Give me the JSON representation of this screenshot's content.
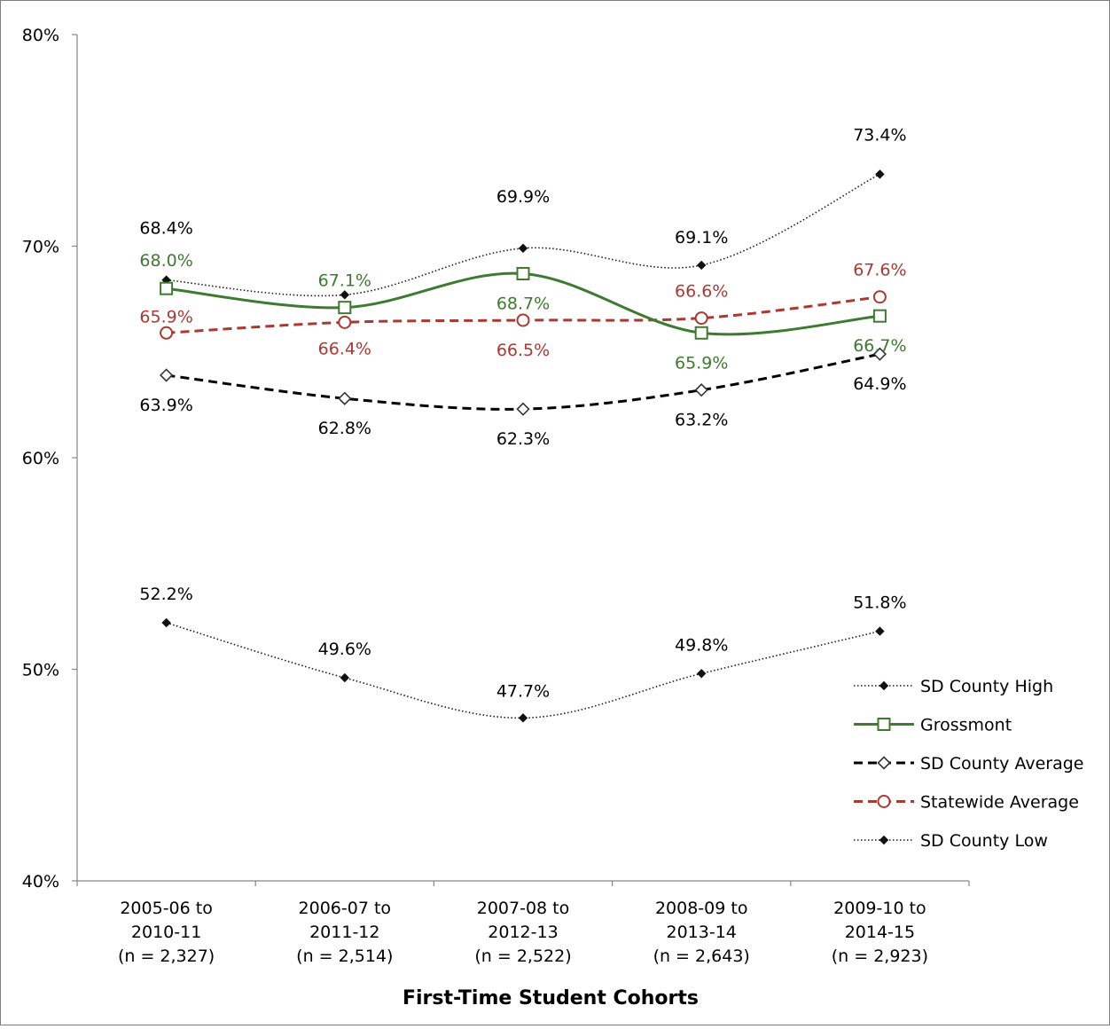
{
  "chart_data": {
    "type": "line",
    "title": "",
    "xlabel": "First-Time Student Cohorts",
    "ylabel": "",
    "ylim": [
      40,
      80
    ],
    "yticks": [
      "40%",
      "50%",
      "60%",
      "70%",
      "80%"
    ],
    "grid": false,
    "legend_position": "right",
    "categories": [
      [
        "2005-06 to",
        "2010-11",
        "(n = 2,327)"
      ],
      [
        "2006-07 to",
        "2011-12",
        "(n = 2,514)"
      ],
      [
        "2007-08 to",
        "2012-13",
        "(n = 2,522)"
      ],
      [
        "2008-09 to",
        "2013-14",
        "(n = 2,643)"
      ],
      [
        "2009-10 to",
        "2014-15",
        "(n = 2,923)"
      ]
    ],
    "series": [
      {
        "name": "SD County High",
        "values": [
          68.4,
          67.7,
          69.9,
          69.1,
          73.4
        ],
        "labels": [
          "68.4%",
          "",
          "69.9%",
          "69.1%",
          "73.4%"
        ],
        "color": "#1a1a1a",
        "dash": "dotted",
        "marker": "small-diamond-filled"
      },
      {
        "name": "Grossmont",
        "values": [
          68.0,
          67.1,
          68.7,
          65.9,
          66.7
        ],
        "labels": [
          "68.0%",
          "67.1%",
          "68.7%",
          "65.9%",
          "66.7%"
        ],
        "color": "#3e7a2f",
        "dash": "solid",
        "marker": "square-open"
      },
      {
        "name": "SD County Average",
        "values": [
          63.9,
          62.8,
          62.3,
          63.2,
          64.9
        ],
        "labels": [
          "63.9%",
          "62.8%",
          "62.3%",
          "63.2%",
          "64.9%"
        ],
        "color": "#000000",
        "dash": "dashed",
        "marker": "diamond-open"
      },
      {
        "name": "Statewide Average",
        "values": [
          65.9,
          66.4,
          66.5,
          66.6,
          67.6
        ],
        "labels": [
          "65.9%",
          "66.4%",
          "66.5%",
          "66.6%",
          "67.6%"
        ],
        "color": "#a83a32",
        "dash": "dashed",
        "marker": "circle-open"
      },
      {
        "name": "SD County Low",
        "values": [
          52.2,
          49.6,
          47.7,
          49.8,
          51.8
        ],
        "labels": [
          "52.2%",
          "49.6%",
          "47.7%",
          "49.8%",
          "51.8%"
        ],
        "color": "#1a1a1a",
        "dash": "dotted",
        "marker": "small-diamond-filled"
      }
    ]
  }
}
